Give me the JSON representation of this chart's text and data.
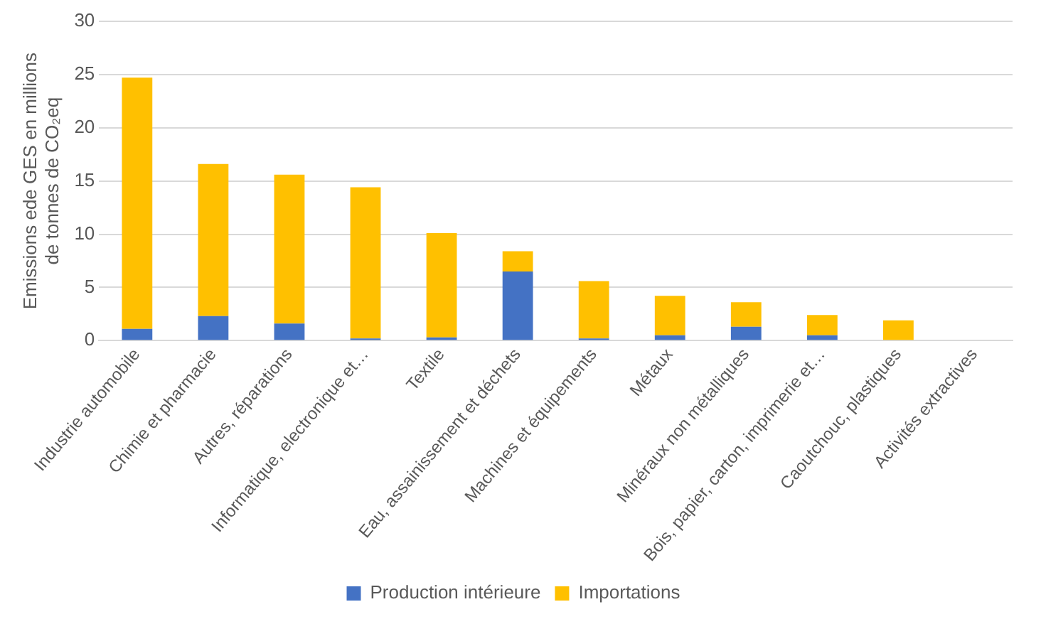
{
  "chart_data": {
    "type": "bar",
    "stacked": true,
    "ylabel": "Emissions ede GES en millions de tonnes de CO₂eq",
    "categories": [
      "Industrie automobile",
      "Chimie et pharmacie",
      "Autres, réparations",
      "Informatique, electronique et…",
      "Textile",
      "Eau, assainissement et déchets",
      "Machines et équipements",
      "Métaux",
      "Minéraux non métalliques",
      "Bois, papier, carton, imprimerie et…",
      "Caoutchouc, plastiques",
      "Activités extractives"
    ],
    "series": [
      {
        "name": "Production intérieure",
        "color": "#4472c4",
        "values": [
          1.1,
          2.3,
          1.6,
          0.2,
          0.3,
          6.5,
          0.2,
          0.5,
          1.3,
          0.5,
          0,
          0
        ]
      },
      {
        "name": "Importations",
        "color": "#ffc000",
        "values": [
          23.6,
          14.3,
          14.0,
          14.2,
          9.8,
          1.9,
          5.4,
          3.7,
          2.3,
          1.9,
          1.9,
          0
        ]
      }
    ],
    "ylim": [
      0,
      30
    ],
    "yticks": [
      0,
      5,
      10,
      15,
      20,
      25,
      30
    ],
    "grid": "y",
    "legend": "bottom"
  }
}
